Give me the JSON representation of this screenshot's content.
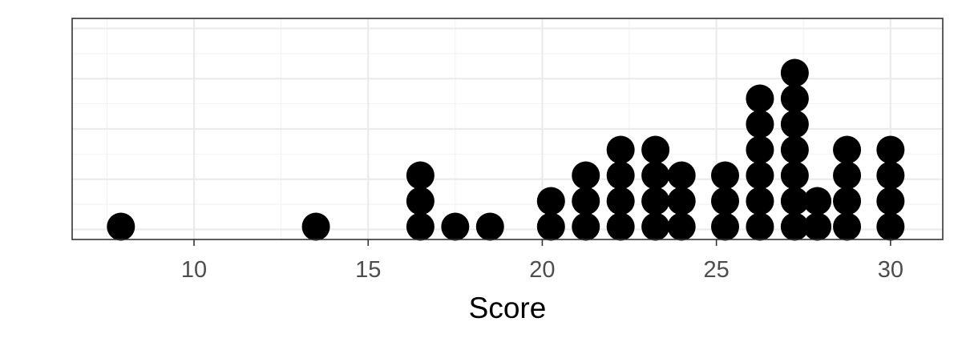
{
  "chart_data": {
    "type": "dotplot",
    "title": "",
    "xlabel": "Score",
    "ylabel": "",
    "xlim": [
      6.5,
      31.5
    ],
    "x_ticks": [
      10,
      15,
      20,
      25,
      30
    ],
    "x_tick_labels": [
      "10",
      "15",
      "20",
      "25",
      "30"
    ],
    "grid": true,
    "legend": "none",
    "dot_color": "#000000",
    "stacks": [
      {
        "x": 7.9,
        "count": 1
      },
      {
        "x": 13.5,
        "count": 1
      },
      {
        "x": 16.5,
        "count": 3
      },
      {
        "x": 17.5,
        "count": 1
      },
      {
        "x": 18.5,
        "count": 1
      },
      {
        "x": 20.25,
        "count": 2
      },
      {
        "x": 21.25,
        "count": 3
      },
      {
        "x": 22.25,
        "count": 4
      },
      {
        "x": 23.25,
        "count": 4
      },
      {
        "x": 24.0,
        "count": 3
      },
      {
        "x": 25.25,
        "count": 3
      },
      {
        "x": 26.25,
        "count": 6
      },
      {
        "x": 27.25,
        "count": 7
      },
      {
        "x": 27.9,
        "count": 2
      },
      {
        "x": 28.75,
        "count": 4
      },
      {
        "x": 30.0,
        "count": 4
      }
    ]
  }
}
